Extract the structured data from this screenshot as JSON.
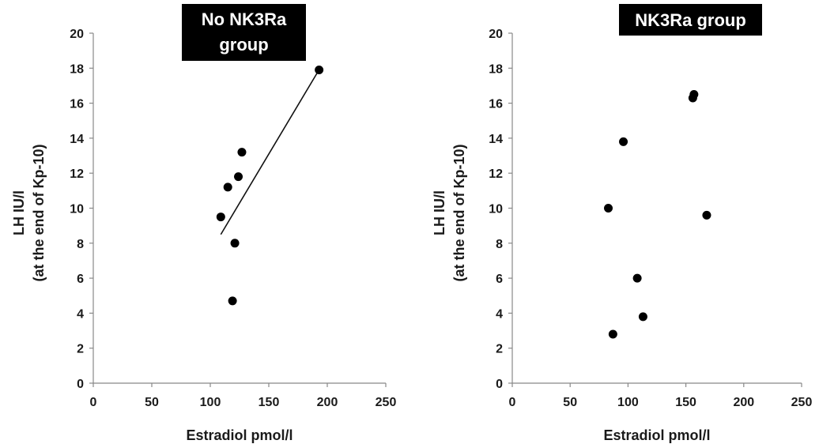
{
  "chart_data": [
    {
      "type": "scatter",
      "title": "No NK3Ra group",
      "title_lines": [
        "No NK3Ra",
        "group"
      ],
      "xlabel": "Estradiol pmol/l",
      "ylabel": "LH IU/l",
      "ylabel_sub": "(at the end of Kp-10)",
      "xlim": [
        0,
        250
      ],
      "ylim": [
        0,
        20
      ],
      "x_ticks": [
        "0",
        "50",
        "100",
        "150",
        "200",
        "250"
      ],
      "y_ticks": [
        "0",
        "2",
        "4",
        "6",
        "8",
        "10",
        "12",
        "14",
        "16",
        "18",
        "20"
      ],
      "grid": false,
      "trendline": {
        "x": [
          109,
          192
        ],
        "y": [
          8.5,
          17.8
        ]
      },
      "points": [
        {
          "x": 109,
          "y": 9.5
        },
        {
          "x": 115,
          "y": 11.2
        },
        {
          "x": 119,
          "y": 4.7
        },
        {
          "x": 121,
          "y": 8.0
        },
        {
          "x": 124,
          "y": 11.8
        },
        {
          "x": 127,
          "y": 13.2
        },
        {
          "x": 193,
          "y": 17.9
        }
      ]
    },
    {
      "type": "scatter",
      "title": "NK3Ra group",
      "title_lines": [
        "NK3Ra group"
      ],
      "xlabel": "Estradiol pmol/l",
      "ylabel": "LH IU/l",
      "ylabel_sub": "(at the end of Kp-10)",
      "xlim": [
        0,
        250
      ],
      "ylim": [
        0,
        20
      ],
      "x_ticks": [
        "0",
        "50",
        "100",
        "150",
        "200",
        "250"
      ],
      "y_ticks": [
        "0",
        "2",
        "4",
        "6",
        "8",
        "10",
        "12",
        "14",
        "16",
        "18",
        "20"
      ],
      "grid": false,
      "points": [
        {
          "x": 83,
          "y": 10.0
        },
        {
          "x": 87,
          "y": 2.8
        },
        {
          "x": 96,
          "y": 13.8
        },
        {
          "x": 108,
          "y": 6.0
        },
        {
          "x": 113,
          "y": 3.8
        },
        {
          "x": 156,
          "y": 16.3
        },
        {
          "x": 157,
          "y": 16.5
        },
        {
          "x": 168,
          "y": 9.6
        }
      ]
    }
  ]
}
